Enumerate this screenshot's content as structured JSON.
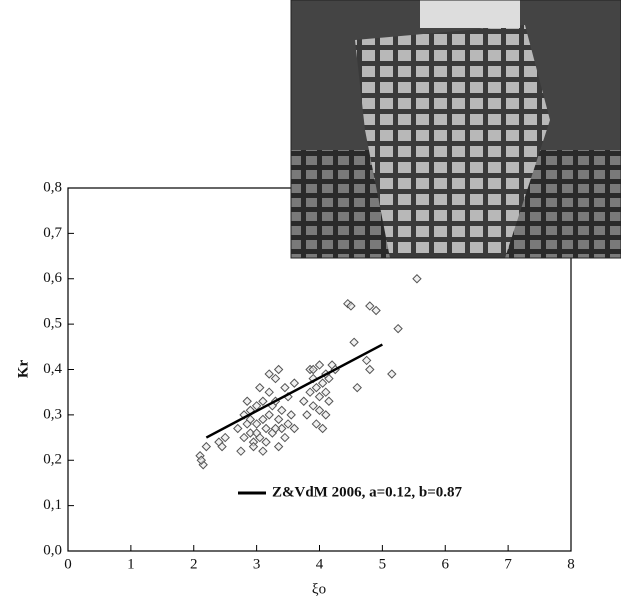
{
  "chart_data": {
    "type": "scatter",
    "xlabel": "ξo",
    "ylabel": "Kr",
    "xlim": [
      0,
      8
    ],
    "ylim": [
      0,
      0.8
    ],
    "xticks": [
      0,
      1,
      2,
      3,
      4,
      5,
      6,
      7,
      8
    ],
    "yticks": [
      {
        "value": 0,
        "label": "0,0"
      },
      {
        "value": 0.1,
        "label": "0,1"
      },
      {
        "value": 0.2,
        "label": "0,2"
      },
      {
        "value": 0.3,
        "label": "0,3"
      },
      {
        "value": 0.4,
        "label": "0,4"
      },
      {
        "value": 0.5,
        "label": "0,5"
      },
      {
        "value": 0.6,
        "label": "0,6"
      },
      {
        "value": 0.7,
        "label": "0,7"
      },
      {
        "value": 0.8,
        "label": "0,8"
      }
    ],
    "series": [
      {
        "type": "scatter",
        "color": "#555555",
        "x": [
          2.1,
          2.15,
          2.2,
          2.12,
          2.4,
          2.45,
          2.5,
          2.7,
          2.75,
          2.8,
          2.8,
          2.85,
          2.9,
          2.9,
          2.95,
          3.0,
          3.0,
          3.05,
          3.1,
          3.1,
          3.15,
          3.2,
          3.2,
          3.25,
          3.3,
          3.3,
          3.35,
          3.35,
          3.4,
          3.4,
          3.45,
          3.5,
          3.5,
          3.55,
          3.6,
          2.85,
          2.95,
          3.05,
          3.15,
          3.25,
          3.3,
          3.2,
          3.1,
          2.9,
          3.45,
          3.0,
          3.35,
          3.6,
          3.8,
          3.85,
          3.9,
          3.9,
          3.95,
          4.0,
          4.0,
          4.05,
          4.1,
          4.1,
          4.15,
          4.2,
          3.95,
          4.05,
          3.85,
          4.0,
          4.15,
          4.1,
          3.9,
          4.45,
          4.5,
          4.55,
          4.6,
          4.75,
          4.8,
          4.8,
          4.9,
          5.15,
          5.25,
          5.55,
          3.75,
          4.25
        ],
        "values": [
          0.21,
          0.19,
          0.23,
          0.2,
          0.24,
          0.23,
          0.25,
          0.27,
          0.22,
          0.3,
          0.25,
          0.33,
          0.26,
          0.31,
          0.24,
          0.28,
          0.32,
          0.25,
          0.29,
          0.22,
          0.27,
          0.3,
          0.35,
          0.26,
          0.33,
          0.38,
          0.29,
          0.4,
          0.27,
          0.31,
          0.25,
          0.28,
          0.34,
          0.3,
          0.37,
          0.28,
          0.23,
          0.36,
          0.24,
          0.32,
          0.27,
          0.39,
          0.33,
          0.29,
          0.36,
          0.26,
          0.23,
          0.27,
          0.3,
          0.35,
          0.32,
          0.38,
          0.28,
          0.41,
          0.34,
          0.37,
          0.3,
          0.39,
          0.33,
          0.41,
          0.36,
          0.27,
          0.4,
          0.31,
          0.38,
          0.35,
          0.4,
          0.545,
          0.54,
          0.46,
          0.36,
          0.42,
          0.4,
          0.54,
          0.53,
          0.39,
          0.49,
          0.6,
          0.33,
          0.4
        ]
      },
      {
        "type": "line",
        "name": "Z&VdM 2006, a=0.12, b=0.87",
        "color": "#000000",
        "x": [
          2.2,
          5.0
        ],
        "values": [
          0.25,
          0.455
        ]
      }
    ]
  }
}
